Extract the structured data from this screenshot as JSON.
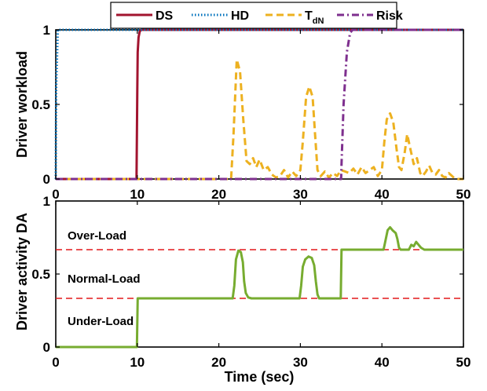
{
  "chart_data": [
    {
      "type": "line",
      "panel": "top",
      "ylabel": "Driver workload",
      "xlim": [
        0,
        50
      ],
      "ylim": [
        0,
        1
      ],
      "xticks": [
        "0",
        "10",
        "20",
        "30",
        "40",
        "50"
      ],
      "yticks": [
        "0",
        "0.5",
        "1"
      ],
      "legend": {
        "placement": "top-center",
        "entries": [
          {
            "label": "DS",
            "sub": ""
          },
          {
            "label": "HD",
            "sub": ""
          },
          {
            "label": "T",
            "sub": "dN"
          },
          {
            "label": "Risk",
            "sub": ""
          }
        ]
      },
      "series": [
        {
          "name": "DS",
          "color": "#a2142f",
          "dash": "solid",
          "x": [
            0,
            9.9,
            10.0,
            10.05,
            10.15,
            10.3,
            10.5,
            50
          ],
          "y": [
            0,
            0,
            0.6,
            0.85,
            0.95,
            0.99,
            1,
            1
          ]
        },
        {
          "name": "HD",
          "color": "#0072bd",
          "dash": "dotted",
          "x": [
            0,
            0.05,
            0.25,
            50
          ],
          "y": [
            0,
            0.6,
            1,
            1
          ]
        },
        {
          "name": "TdN",
          "color": "#edb120",
          "dash": "dashed",
          "x": [
            0,
            21.5,
            21.8,
            22.2,
            22.6,
            23.0,
            23.4,
            23.8,
            24.2,
            24.6,
            25.0,
            25.5,
            26.0,
            26.5,
            27.0,
            27.5,
            28.0,
            28.5,
            29.0,
            29.5,
            30.0,
            30.3,
            30.7,
            31.1,
            31.5,
            31.8,
            32.1,
            32.5,
            33.0,
            33.5,
            34.0,
            34.5,
            35.0,
            35.5,
            36.0,
            36.5,
            37.0,
            37.5,
            38.0,
            38.5,
            39.0,
            39.5,
            40.0,
            40.3,
            40.6,
            41.0,
            41.4,
            41.8,
            42.1,
            42.4,
            42.8,
            43.1,
            43.5,
            43.9,
            44.3,
            44.7,
            45.0,
            45.4,
            45.8,
            46.2,
            46.6,
            47.0,
            47.4,
            47.8,
            48.2,
            48.6,
            49.0,
            49.5,
            50.0
          ],
          "y": [
            0,
            0,
            0.3,
            0.8,
            0.72,
            0.4,
            0.12,
            0.1,
            0.14,
            0.08,
            0.13,
            0.06,
            0.08,
            0.03,
            0.01,
            0.02,
            0.06,
            0.01,
            0.05,
            0.02,
            0.06,
            0.25,
            0.55,
            0.62,
            0.55,
            0.3,
            0.06,
            0.02,
            0.05,
            0.01,
            0.04,
            0.02,
            0.06,
            0.05,
            0.04,
            0.07,
            0.03,
            0.08,
            0.04,
            0.06,
            0.08,
            0.02,
            0.06,
            0.25,
            0.4,
            0.44,
            0.38,
            0.2,
            0.08,
            0.06,
            0.18,
            0.3,
            0.2,
            0.1,
            0.14,
            0.04,
            0.02,
            0.05,
            0.09,
            0.04,
            0.03,
            0.06,
            0.02,
            0.01,
            0.04,
            0.02,
            0,
            0,
            0
          ]
        },
        {
          "name": "Risk",
          "color": "#7e2f8e",
          "dash": "dashdot",
          "x": [
            0,
            35.0,
            35.05,
            35.3,
            35.7,
            36.1,
            36.4,
            50
          ],
          "y": [
            0,
            0,
            0.1,
            0.5,
            0.85,
            0.98,
            1,
            1
          ]
        }
      ]
    },
    {
      "type": "line",
      "panel": "bottom",
      "xlabel": "Time (sec)",
      "ylabel": "Driver activity DA",
      "xlim": [
        0,
        50
      ],
      "ylim": [
        0,
        1
      ],
      "xticks": [
        "0",
        "10",
        "20",
        "30",
        "40",
        "50"
      ],
      "yticks": [
        "0",
        "0.5",
        "1"
      ],
      "thresholds": [
        0.6667,
        0.3333
      ],
      "threshold_color": "#e3191c",
      "annotations": [
        "Over-Load",
        "Normal-Load",
        "Under-Load"
      ],
      "series": [
        {
          "name": "DA",
          "color": "#77ac30",
          "dash": "solid",
          "x": [
            0,
            9.95,
            10.05,
            21.7,
            21.9,
            22.1,
            22.4,
            22.7,
            22.95,
            23.1,
            23.3,
            23.6,
            24,
            29.9,
            30.1,
            30.3,
            30.6,
            31,
            31.4,
            31.7,
            31.9,
            32.1,
            32.3,
            34.95,
            35.05,
            40.2,
            40.4,
            40.7,
            41.0,
            41.3,
            41.7,
            41.9,
            42.1,
            42.3,
            43.3,
            43.6,
            43.9,
            44.2,
            44.5,
            44.8,
            45.2,
            50
          ],
          "y": [
            0,
            0,
            0.3333,
            0.3333,
            0.42,
            0.6,
            0.66,
            0.65,
            0.58,
            0.45,
            0.37,
            0.34,
            0.3333,
            0.3333,
            0.42,
            0.55,
            0.6,
            0.62,
            0.61,
            0.56,
            0.45,
            0.36,
            0.3333,
            0.3333,
            0.6667,
            0.6667,
            0.72,
            0.8,
            0.82,
            0.8,
            0.78,
            0.74,
            0.68,
            0.6667,
            0.6667,
            0.7,
            0.69,
            0.72,
            0.7,
            0.68,
            0.6667,
            0.6667
          ]
        }
      ]
    }
  ]
}
